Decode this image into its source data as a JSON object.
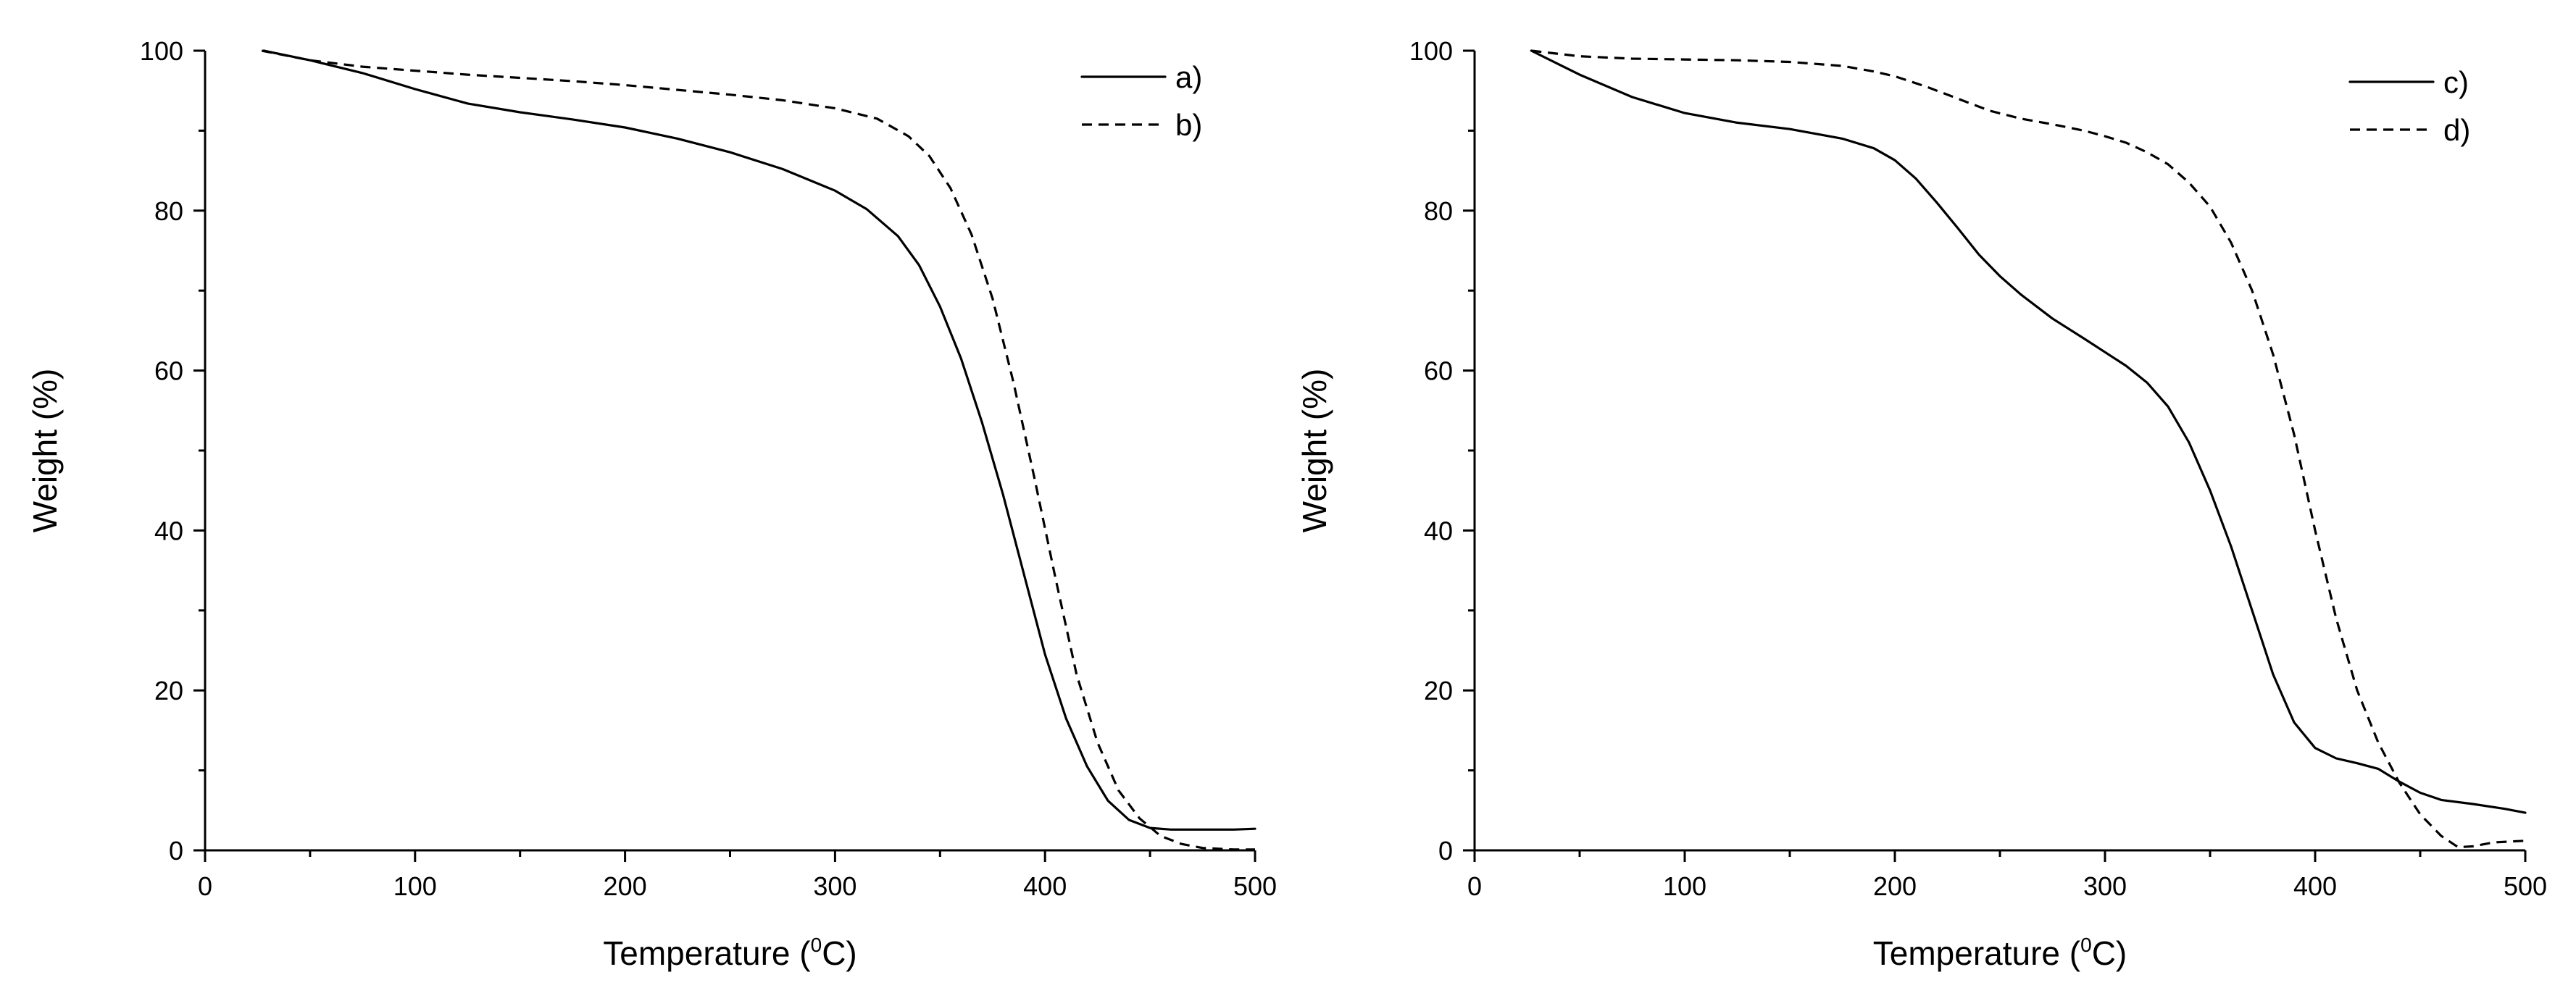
{
  "chart_data": [
    {
      "type": "line",
      "title": "",
      "xlabel": "Temperature (",
      "xlabel_sup": "0",
      "xlabel_suffix": "C)",
      "ylabel": "Weight (%)",
      "xlim": [
        0,
        500
      ],
      "ylim": [
        0,
        100
      ],
      "xticks": [
        0,
        100,
        200,
        300,
        400,
        500
      ],
      "yticks": [
        0,
        20,
        40,
        60,
        80,
        100
      ],
      "grid": false,
      "legend_position": "top-right",
      "series": [
        {
          "name": "a)",
          "style": "solid",
          "x": [
            28,
            50,
            75,
            100,
            125,
            150,
            175,
            200,
            225,
            250,
            275,
            300,
            315,
            330,
            340,
            350,
            360,
            370,
            380,
            390,
            400,
            410,
            420,
            430,
            440,
            450,
            460,
            475,
            490,
            500
          ],
          "y": [
            100,
            98.8,
            97.2,
            95.2,
            93.4,
            92.3,
            91.4,
            90.4,
            89.0,
            87.3,
            85.2,
            82.5,
            80.2,
            76.8,
            73.2,
            68.0,
            61.5,
            53.5,
            44.5,
            34.5,
            24.5,
            16.5,
            10.5,
            6.2,
            3.8,
            2.8,
            2.6,
            2.6,
            2.6,
            2.7
          ]
        },
        {
          "name": "b)",
          "style": "dashed",
          "x": [
            27,
            50,
            75,
            100,
            125,
            150,
            175,
            200,
            225,
            250,
            275,
            300,
            320,
            335,
            345,
            355,
            365,
            375,
            385,
            395,
            405,
            415,
            425,
            435,
            445,
            455,
            465,
            475,
            490,
            500
          ],
          "y": [
            100,
            98.8,
            98.0,
            97.5,
            97.0,
            96.6,
            96.2,
            95.7,
            95.1,
            94.5,
            93.8,
            92.8,
            91.5,
            89.3,
            86.8,
            82.8,
            77.0,
            69.0,
            58.5,
            46.5,
            34.0,
            22.0,
            13.5,
            7.5,
            4.0,
            1.8,
            0.8,
            0.3,
            0.1,
            0.1
          ]
        }
      ]
    },
    {
      "type": "line",
      "title": "",
      "xlabel": "Temperature (",
      "xlabel_sup": "0",
      "xlabel_suffix": "C)",
      "ylabel": "Weight (%)",
      "xlim": [
        0,
        500
      ],
      "ylim": [
        0,
        100
      ],
      "xticks": [
        0,
        100,
        200,
        300,
        400,
        500
      ],
      "yticks": [
        0,
        20,
        40,
        60,
        80,
        100
      ],
      "grid": false,
      "legend_position": "top-right",
      "series": [
        {
          "name": "c)",
          "style": "solid",
          "x": [
            27,
            50,
            75,
            100,
            125,
            150,
            175,
            190,
            200,
            210,
            220,
            230,
            240,
            250,
            260,
            275,
            290,
            300,
            310,
            320,
            330,
            340,
            350,
            360,
            370,
            380,
            390,
            400,
            410,
            420,
            430,
            440,
            450,
            460,
            475,
            490,
            500
          ],
          "y": [
            100,
            97.0,
            94.2,
            92.2,
            91.0,
            90.2,
            89.0,
            87.8,
            86.3,
            84.0,
            81.0,
            77.8,
            74.5,
            71.8,
            69.5,
            66.5,
            64.0,
            62.3,
            60.6,
            58.5,
            55.5,
            51.0,
            45.0,
            38.0,
            30.0,
            22.0,
            16.0,
            12.8,
            11.5,
            10.9,
            10.2,
            8.6,
            7.2,
            6.3,
            5.8,
            5.2,
            4.7
          ]
        },
        {
          "name": "d)",
          "style": "dashed",
          "x": [
            27,
            50,
            75,
            100,
            125,
            150,
            175,
            190,
            200,
            215,
            230,
            245,
            260,
            275,
            290,
            300,
            310,
            320,
            330,
            340,
            350,
            360,
            370,
            380,
            390,
            400,
            410,
            420,
            430,
            440,
            450,
            460,
            468,
            475,
            485,
            500
          ],
          "y": [
            100,
            99.3,
            99.0,
            98.9,
            98.8,
            98.6,
            98.1,
            97.4,
            96.8,
            95.5,
            94.0,
            92.5,
            91.5,
            90.8,
            90.0,
            89.3,
            88.5,
            87.3,
            85.8,
            83.5,
            80.5,
            76.0,
            70.0,
            62.0,
            52.0,
            40.0,
            29.0,
            20.0,
            13.5,
            8.5,
            4.5,
            1.8,
            0.4,
            0.5,
            1.0,
            1.2
          ]
        }
      ]
    }
  ]
}
